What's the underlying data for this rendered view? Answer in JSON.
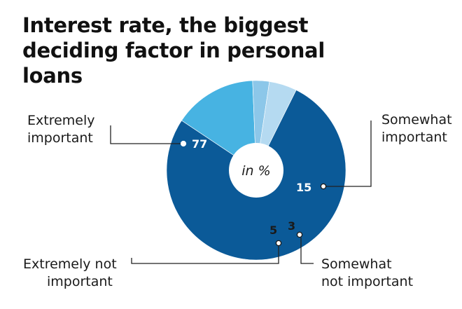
{
  "title": "Interest rate, the biggest deciding factor in personal loans",
  "chart_data": {
    "type": "pie",
    "title": "Interest rate, the biggest deciding factor in personal loans",
    "unit_label": "in %",
    "slices": [
      {
        "label_lines": [
          "Extremely",
          "important"
        ],
        "value": 77,
        "value_label": "77",
        "color": "#0b5a98"
      },
      {
        "label_lines": [
          "Somewhat",
          "important"
        ],
        "value": 15,
        "value_label": "15",
        "color": "#47b3e2"
      },
      {
        "label_lines": [
          "Somewhat",
          "not important"
        ],
        "value": 3,
        "value_label": "3",
        "color": "#8cc7e9"
      },
      {
        "label_lines": [
          "Extremely not",
          "important"
        ],
        "value": 5,
        "value_label": "5",
        "color": "#b5daf1"
      }
    ]
  }
}
